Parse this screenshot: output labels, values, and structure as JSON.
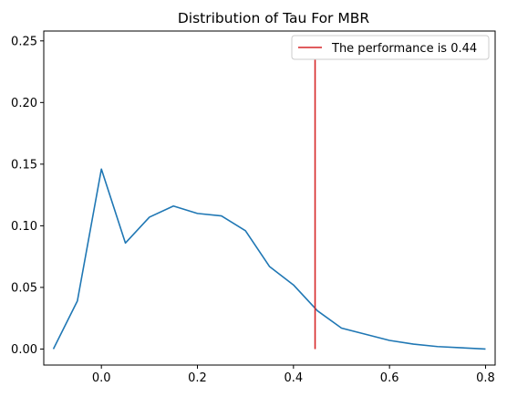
{
  "chart_data": {
    "type": "line",
    "title": "Distribution of Tau For MBR",
    "xlabel": "",
    "ylabel": "",
    "xlim": [
      -0.12,
      0.82
    ],
    "ylim": [
      -0.013,
      0.258
    ],
    "x_ticks": [
      0.0,
      0.2,
      0.4,
      0.6,
      0.8
    ],
    "x_tick_labels": [
      "0.0",
      "0.2",
      "0.4",
      "0.6",
      "0.8"
    ],
    "y_ticks": [
      0.0,
      0.05,
      0.1,
      0.15,
      0.2,
      0.25
    ],
    "y_tick_labels": [
      "0.00",
      "0.05",
      "0.10",
      "0.15",
      "0.20",
      "0.25"
    ],
    "grid": false,
    "legend_position": "upper right",
    "series": [
      {
        "color": "#1f77b4",
        "x": [
          -0.1,
          -0.05,
          0.0,
          0.05,
          0.1,
          0.15,
          0.2,
          0.25,
          0.3,
          0.35,
          0.4,
          0.45,
          0.5,
          0.55,
          0.6,
          0.65,
          0.7,
          0.75,
          0.8
        ],
        "y": [
          0.0,
          0.039,
          0.146,
          0.086,
          0.107,
          0.116,
          0.11,
          0.108,
          0.096,
          0.067,
          0.052,
          0.031,
          0.017,
          0.012,
          0.007,
          0.004,
          0.002,
          0.001,
          0.0
        ]
      }
    ],
    "vline": {
      "label": "The performance is 0.44",
      "color": "#d62728",
      "x": 0.445,
      "y_range": [
        0.0,
        0.235
      ]
    }
  }
}
